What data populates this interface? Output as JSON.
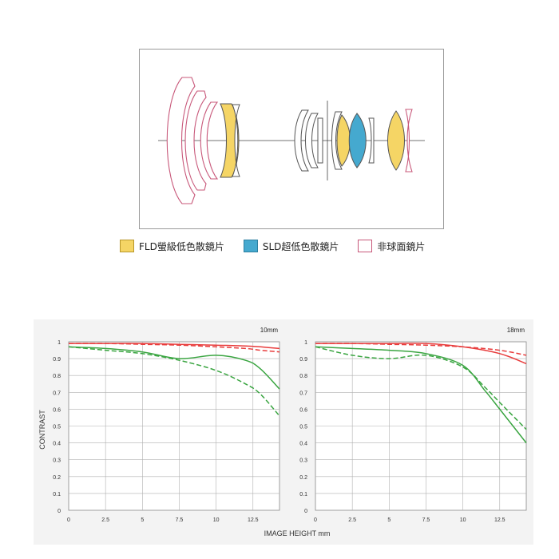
{
  "legend": {
    "items": [
      {
        "label": "FLD螢級低色散鏡片",
        "color": "#f5d565",
        "border": "#b8972a"
      },
      {
        "label": "SLD超低色散鏡片",
        "color": "#45a9cf",
        "border": "#2c7fa0"
      },
      {
        "label": "非球面鏡片",
        "color": "#ffffff",
        "border": "#c8587a"
      }
    ]
  },
  "colors": {
    "panel_bg": "#f3f3f3",
    "plot_bg": "#ffffff",
    "grid": "#b0b0b0",
    "sagittal_red": "#e83c3c",
    "meridional_green": "#3aa541",
    "lens_outline": "#555555",
    "aspheric_outline": "#c8587a",
    "fld_fill": "#f5d565",
    "sld_fill": "#45a9cf"
  },
  "chart_data": [
    {
      "type": "line",
      "title": "10mm",
      "xlabel": "IMAGE HEIGHT mm",
      "ylabel": "CONTRAST",
      "xlim": [
        0,
        14.3
      ],
      "ylim": [
        0,
        1
      ],
      "xticks": [
        "0",
        "2.5",
        "5",
        "7.5",
        "10",
        "12.5"
      ],
      "yticks": [
        "0",
        "0.1",
        "0.2",
        "0.3",
        "0.4",
        "0.5",
        "0.6",
        "0.7",
        "0.8",
        "0.9",
        "1"
      ],
      "grid": true,
      "series": [
        {
          "color": "#e83c3c",
          "dash": false,
          "x": [
            0,
            2.5,
            5,
            7.5,
            10,
            12,
            13,
            14.3
          ],
          "y": [
            0.99,
            0.99,
            0.99,
            0.985,
            0.98,
            0.975,
            0.97,
            0.96
          ]
        },
        {
          "color": "#e83c3c",
          "dash": true,
          "x": [
            0,
            2.5,
            5,
            7.5,
            10,
            12,
            13,
            14.3
          ],
          "y": [
            0.99,
            0.99,
            0.985,
            0.98,
            0.97,
            0.96,
            0.95,
            0.94
          ]
        },
        {
          "color": "#3aa541",
          "dash": false,
          "x": [
            0,
            2.5,
            5,
            7.5,
            10,
            12,
            13,
            14.3
          ],
          "y": [
            0.97,
            0.96,
            0.94,
            0.9,
            0.92,
            0.89,
            0.84,
            0.72
          ]
        },
        {
          "color": "#3aa541",
          "dash": true,
          "x": [
            0,
            2.5,
            5,
            7.5,
            10,
            12,
            13,
            14.3
          ],
          "y": [
            0.97,
            0.95,
            0.93,
            0.89,
            0.83,
            0.75,
            0.69,
            0.56
          ]
        }
      ]
    },
    {
      "type": "line",
      "title": "18mm",
      "xlabel": "IMAGE HEIGHT mm",
      "ylabel": "CONTRAST",
      "xlim": [
        0,
        14.3
      ],
      "ylim": [
        0,
        1
      ],
      "xticks": [
        "0",
        "2.5",
        "5",
        "7.5",
        "10",
        "12.5"
      ],
      "yticks": [
        "0",
        "0.1",
        "0.2",
        "0.3",
        "0.4",
        "0.5",
        "0.6",
        "0.7",
        "0.8",
        "0.9",
        "1"
      ],
      "grid": true,
      "series": [
        {
          "color": "#e83c3c",
          "dash": false,
          "x": [
            0,
            2.5,
            5,
            7.5,
            10,
            12.5,
            14.3
          ],
          "y": [
            0.99,
            0.99,
            0.99,
            0.99,
            0.97,
            0.93,
            0.87
          ]
        },
        {
          "color": "#e83c3c",
          "dash": true,
          "x": [
            0,
            2.5,
            5,
            7.5,
            10,
            12.5,
            14.3
          ],
          "y": [
            0.99,
            0.99,
            0.985,
            0.98,
            0.97,
            0.95,
            0.92
          ]
        },
        {
          "color": "#3aa541",
          "dash": false,
          "x": [
            0,
            2.5,
            5,
            7.5,
            10,
            11.5,
            12.5,
            14.3
          ],
          "y": [
            0.97,
            0.96,
            0.95,
            0.93,
            0.86,
            0.71,
            0.6,
            0.4
          ]
        },
        {
          "color": "#3aa541",
          "dash": true,
          "x": [
            0,
            2.5,
            5,
            7.5,
            10,
            11.5,
            12.5,
            14.3
          ],
          "y": [
            0.97,
            0.92,
            0.9,
            0.92,
            0.85,
            0.73,
            0.64,
            0.48
          ]
        }
      ]
    }
  ]
}
